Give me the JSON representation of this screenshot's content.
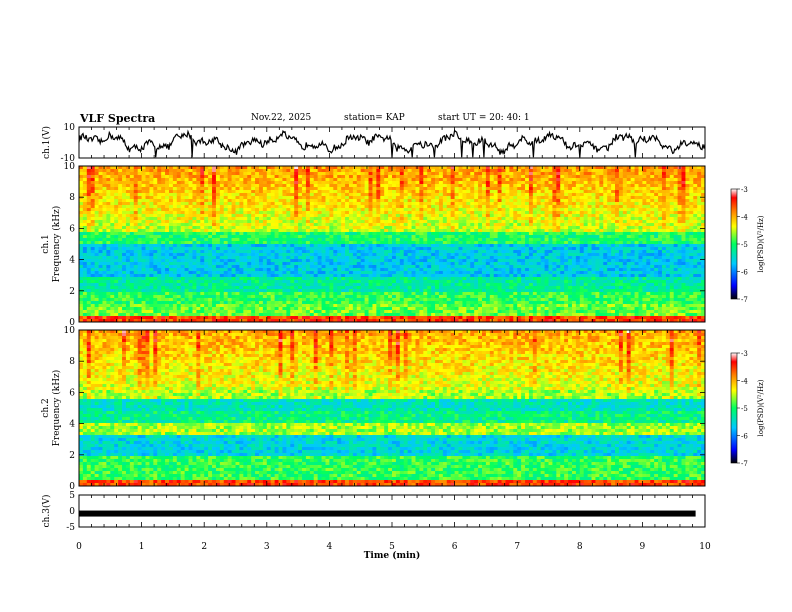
{
  "header": {
    "title": "VLF Spectra",
    "date": "Nov.22, 2025",
    "station": "station= KAP",
    "start_ut": "start  UT =   20: 40: 1"
  },
  "colors": {
    "trace": "#000000",
    "frame": "#000000",
    "colormap": [
      "#000000",
      "#0000ff",
      "#00c8ff",
      "#00ff60",
      "#ffff00",
      "#ff8000",
      "#ff0000",
      "#ffffff"
    ]
  },
  "chart_data": [
    {
      "type": "line",
      "panel": "ch1-waveform",
      "ylabel": "ch.1(V)",
      "ylim": [
        -10,
        10
      ],
      "yticks": [
        "10",
        "-10"
      ],
      "xlim": [
        0,
        10
      ],
      "grid": false
    },
    {
      "type": "heatmap",
      "panel": "ch1-spectrogram",
      "ylabel_channel": "ch.1",
      "ylabel": "Frequency (kHz)",
      "ylim": [
        0,
        10
      ],
      "yticks": [
        "0",
        "2",
        "4",
        "6",
        "8",
        "10"
      ],
      "xlim": [
        0,
        10
      ],
      "colorbar": {
        "label": "log(PSD)(V²/Hz)",
        "range": [
          -7,
          -3
        ],
        "ticks": [
          "-3",
          "-4",
          "-5",
          "-6",
          "-7"
        ]
      }
    },
    {
      "type": "heatmap",
      "panel": "ch2-spectrogram",
      "ylabel_channel": "ch.2",
      "ylabel": "Frequency (kHz)",
      "ylim": [
        0,
        10
      ],
      "yticks": [
        "0",
        "2",
        "4",
        "6",
        "8",
        "10"
      ],
      "xlim": [
        0,
        10
      ],
      "colorbar": {
        "label": "log(PSD)(V²/Hz)",
        "range": [
          -7,
          -3
        ],
        "ticks": [
          "-3",
          "-4",
          "-5",
          "-6",
          "-7"
        ]
      }
    },
    {
      "type": "line",
      "panel": "ch3-waveform",
      "ylabel": "ch.3(V)",
      "ylim": [
        -5,
        5
      ],
      "yticks": [
        "5",
        "0",
        "-5"
      ],
      "xlim": [
        0,
        10
      ],
      "level": -0.8,
      "grid": false
    }
  ],
  "xaxis": {
    "label": "Time  (min)",
    "ticks": [
      "0",
      "1",
      "2",
      "3",
      "4",
      "5",
      "6",
      "7",
      "8",
      "9",
      "10"
    ],
    "range": [
      0,
      10
    ]
  }
}
